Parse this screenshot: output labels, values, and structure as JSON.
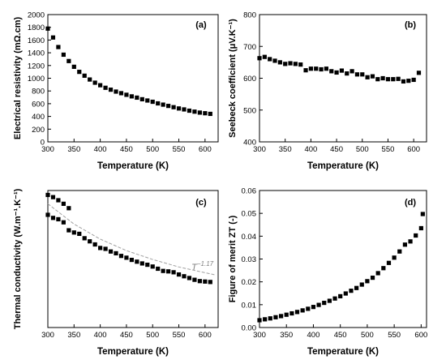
{
  "chart_data": [
    {
      "panel": "(a)",
      "type": "scatter",
      "xlabel": "Temperature (K)",
      "ylabel": "Electrical resistivity (mΩ.cm)",
      "xlim": [
        300,
        625
      ],
      "ylim": [
        0,
        2000
      ],
      "xticks": [
        300,
        350,
        400,
        450,
        500,
        550,
        600
      ],
      "yticks": [
        0,
        200,
        400,
        600,
        800,
        1000,
        1200,
        1400,
        1600,
        1800,
        2000
      ],
      "marker_color": "#000000",
      "x": [
        300,
        310,
        320,
        330,
        340,
        350,
        360,
        370,
        380,
        390,
        400,
        410,
        420,
        430,
        440,
        450,
        460,
        470,
        480,
        490,
        500,
        510,
        520,
        530,
        540,
        550,
        560,
        570,
        580,
        590,
        600,
        610
      ],
      "y": [
        1780,
        1640,
        1490,
        1370,
        1270,
        1180,
        1100,
        1040,
        980,
        930,
        890,
        850,
        820,
        790,
        765,
        740,
        715,
        695,
        670,
        650,
        630,
        605,
        585,
        565,
        545,
        525,
        510,
        490,
        475,
        460,
        450,
        440
      ]
    },
    {
      "panel": "(b)",
      "type": "scatter",
      "xlabel": "Temperature (K)",
      "ylabel": "Seebeck coefficient (μV.K⁻¹)",
      "xlim": [
        300,
        625
      ],
      "ylim": [
        400,
        800
      ],
      "xticks": [
        300,
        350,
        400,
        450,
        500,
        550,
        600
      ],
      "yticks": [
        400,
        500,
        600,
        700,
        800
      ],
      "marker_color": "#000000",
      "x": [
        300,
        310,
        320,
        330,
        340,
        350,
        360,
        370,
        380,
        390,
        400,
        410,
        420,
        430,
        440,
        450,
        460,
        470,
        480,
        490,
        500,
        510,
        520,
        530,
        540,
        550,
        560,
        570,
        580,
        590,
        600,
        610
      ],
      "y": [
        663,
        667,
        660,
        655,
        650,
        645,
        647,
        645,
        643,
        625,
        630,
        630,
        628,
        630,
        622,
        618,
        624,
        615,
        622,
        612,
        612,
        603,
        606,
        597,
        600,
        597,
        597,
        598,
        590,
        592,
        595,
        617
      ]
    },
    {
      "panel": "(c)",
      "type": "scatter",
      "xlabel": "Temperature (K)",
      "ylabel": "Thermal conductivity (W.m⁻¹.K⁻¹)",
      "xlim": [
        300,
        625
      ],
      "ylim": [
        0,
        3.1
      ],
      "xticks": [
        300,
        350,
        400,
        450,
        500,
        550,
        600
      ],
      "yticks": [],
      "marker_color": "#000000",
      "fit_color": "#a0a0a0",
      "fit_label": "T",
      "fit_exponent": "−1.17",
      "fit_x": [
        300,
        350,
        400,
        450,
        500,
        550,
        600,
        620
      ],
      "fit_y": [
        2.8,
        2.34,
        2.0,
        1.74,
        1.54,
        1.37,
        1.24,
        1.19
      ],
      "x": [
        300,
        310,
        320,
        330,
        340,
        350,
        360,
        370,
        380,
        390,
        400,
        410,
        420,
        430,
        440,
        450,
        460,
        470,
        480,
        490,
        500,
        510,
        520,
        530,
        540,
        550,
        560,
        570,
        580,
        590,
        600,
        610
      ],
      "y": [
        2.55,
        2.48,
        2.45,
        2.38,
        2.2,
        2.15,
        2.12,
        2.02,
        1.95,
        1.88,
        1.8,
        1.78,
        1.72,
        1.68,
        1.62,
        1.58,
        1.53,
        1.49,
        1.45,
        1.42,
        1.38,
        1.33,
        1.28,
        1.27,
        1.25,
        1.2,
        1.16,
        1.12,
        1.08,
        1.05,
        1.04,
        1.03
      ],
      "x2": [
        300,
        310,
        320,
        330,
        340
      ],
      "y2": [
        3.0,
        2.95,
        2.88,
        2.8,
        2.7
      ]
    },
    {
      "panel": "(d)",
      "type": "scatter",
      "xlabel": "Temperature (K)",
      "ylabel": "Figure of merit ZT (-)",
      "xlim": [
        300,
        610
      ],
      "ylim": [
        0,
        0.06
      ],
      "xticks": [
        300,
        350,
        400,
        450,
        500,
        550,
        600
      ],
      "yticks": [
        0.0,
        0.01,
        0.02,
        0.03,
        0.04,
        0.05,
        0.06
      ],
      "ytick_labels": [
        "0.00",
        "0.01",
        "0.02",
        "0.03",
        "0.04",
        "0.05",
        "0.06"
      ],
      "marker_color": "#000000",
      "x": [
        300,
        310,
        320,
        330,
        340,
        350,
        360,
        370,
        380,
        390,
        400,
        410,
        420,
        430,
        440,
        450,
        460,
        470,
        480,
        490,
        500,
        510,
        520,
        530,
        540,
        550,
        560,
        570,
        580,
        590,
        600
      ],
      "y": [
        0.0032,
        0.0036,
        0.004,
        0.0045,
        0.005,
        0.0056,
        0.0062,
        0.0068,
        0.0075,
        0.0082,
        0.009,
        0.0099,
        0.0108,
        0.0117,
        0.0127,
        0.0137,
        0.0149,
        0.0161,
        0.0173,
        0.0188,
        0.0203,
        0.0218,
        0.0238,
        0.026,
        0.0283,
        0.0306,
        0.0333,
        0.0363,
        0.0377,
        0.0403,
        0.0435
      ]
    }
  ],
  "extra_point_d": {
    "x": 603,
    "y": 0.0497
  }
}
